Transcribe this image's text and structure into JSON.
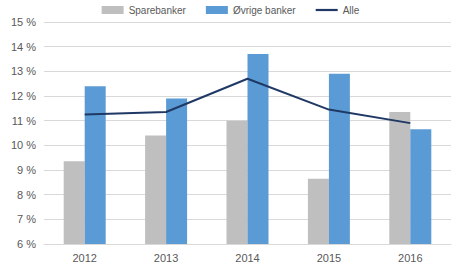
{
  "chart_data": {
    "type": "bar",
    "categories": [
      "2012",
      "2013",
      "2014",
      "2015",
      "2016"
    ],
    "series": [
      {
        "name": "Sparebanker",
        "type": "bar",
        "color": "#bfbfbf",
        "values": [
          9.35,
          10.4,
          11.0,
          8.65,
          11.35
        ]
      },
      {
        "name": "Øvrige banker",
        "type": "bar",
        "color": "#5b9bd5",
        "values": [
          12.4,
          11.9,
          13.7,
          12.9,
          10.65
        ]
      },
      {
        "name": "Alle",
        "type": "line",
        "color": "#1f3864",
        "values": [
          11.25,
          11.35,
          12.7,
          11.45,
          10.9
        ]
      }
    ],
    "ylim": [
      6,
      15
    ],
    "yticks": [
      {
        "value": 6,
        "label": "6 %"
      },
      {
        "value": 7,
        "label": "7 %"
      },
      {
        "value": 8,
        "label": "8 %"
      },
      {
        "value": 9,
        "label": "9 %"
      },
      {
        "value": 10,
        "label": "10 %"
      },
      {
        "value": 11,
        "label": "11 %"
      },
      {
        "value": 12,
        "label": "12 %"
      },
      {
        "value": 13,
        "label": "13 %"
      },
      {
        "value": 14,
        "label": "14 %"
      },
      {
        "value": 15,
        "label": "15 %"
      }
    ],
    "grid": true,
    "legend": "top"
  }
}
